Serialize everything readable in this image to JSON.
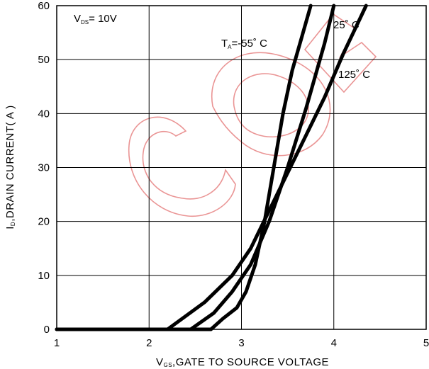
{
  "chart_data": {
    "type": "line",
    "xlabel": {
      "main": "V",
      "sub": "GS",
      "rest": ",GATE TO SOURCE VOLTAGE"
    },
    "ylabel": {
      "main": "I",
      "sub": "D",
      "rest": ",DRAIN CURRENT( A )"
    },
    "xlim": [
      1,
      5
    ],
    "ylim": [
      0,
      60
    ],
    "x_ticks": [
      1,
      2,
      3,
      4,
      5
    ],
    "y_ticks": [
      0,
      10,
      20,
      30,
      40,
      50,
      60
    ],
    "grid": true,
    "condition": {
      "main": "V",
      "sub": "DS",
      "rest": "= 10V"
    },
    "series": [
      {
        "name": "T_A=-55°C",
        "label": {
          "main": "T",
          "sub": "A",
          "rest": "=-55˚ C"
        },
        "x": [
          1.0,
          2.67,
          2.8,
          2.95,
          3.05,
          3.15,
          3.25,
          3.35,
          3.45,
          3.55,
          3.65,
          3.75
        ],
        "y": [
          0,
          0,
          2,
          4,
          7,
          12,
          20,
          30,
          40,
          48,
          54,
          60
        ]
      },
      {
        "name": "25°C",
        "label": {
          "main": "25˚ C"
        },
        "x": [
          1.0,
          2.45,
          2.7,
          2.9,
          3.1,
          3.3,
          3.5,
          3.7,
          3.9,
          4.0
        ],
        "y": [
          0,
          0,
          3,
          7,
          12,
          20,
          30,
          41,
          53,
          60
        ]
      },
      {
        "name": "125°C",
        "label": {
          "main": "125˚ C"
        },
        "x": [
          1.0,
          2.2,
          2.6,
          2.9,
          3.1,
          3.3,
          3.5,
          3.7,
          3.9,
          4.1,
          4.35
        ],
        "y": [
          0,
          0,
          5,
          10,
          15,
          22,
          29,
          36,
          43,
          51,
          60
        ]
      }
    ]
  },
  "watermark": {
    "text": "CGC"
  }
}
